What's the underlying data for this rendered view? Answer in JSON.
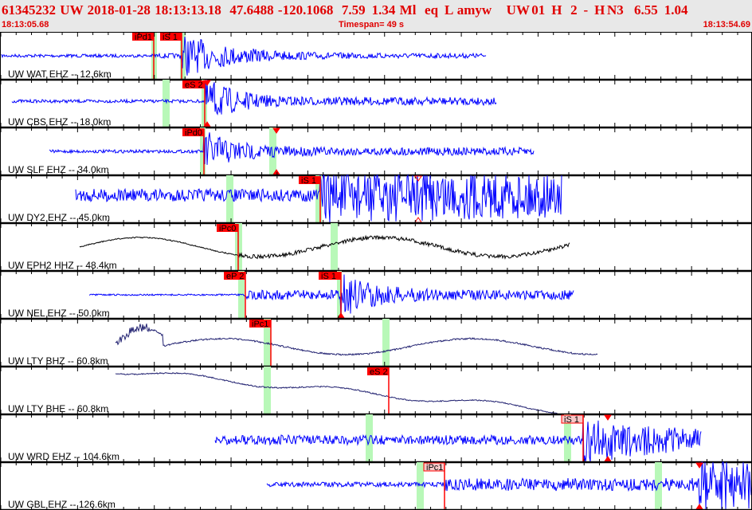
{
  "header": {
    "title": "61345232  UW  2018-01-28  18:13:13.18    47.6488  -120.1068    7.59   1.34  Ml    eq   L  amyw       UW 01   H    2   -   H N3     6.55   1.04",
    "start_time": "18:13:05.68",
    "timespan": "Timespan=  49 s",
    "end_time": "18:13:54.69"
  },
  "colors": {
    "pick": "#ff0000",
    "pick_weak": "#f8c8c8",
    "band": "#b8f8b8",
    "trace_short": "#0000ff",
    "trace_black": "#000000",
    "trace_broadband": "#202070"
  },
  "traces": [
    {
      "label": "UW WAT EHZ -- 12.6km",
      "picks": [
        "iPd1",
        "iS 1"
      ]
    },
    {
      "label": "UW CBS EHZ -- 18.0km",
      "picks": [
        "eS 2"
      ]
    },
    {
      "label": "UW SLF EHZ -- 34.0km",
      "picks": [
        "iPd0"
      ]
    },
    {
      "label": "UW DY2 EHZ -- 45.0km",
      "picks": [
        "iS 1"
      ]
    },
    {
      "label": "UW EPH2 HHZ -- 48.4km",
      "picks": [
        "iPc0"
      ]
    },
    {
      "label": "UW NEL EHZ -- 50.0km",
      "picks": [
        "eP 2",
        "iS 1"
      ]
    },
    {
      "label": "UW LTY BHZ -- 60.8km",
      "picks": [
        "iPc1"
      ]
    },
    {
      "label": "UW LTY BHE -- 60.8km",
      "picks": [
        "eS 2"
      ]
    },
    {
      "label": "UW WRD EHZ -- 104.6km",
      "picks": [
        "iS 1"
      ]
    },
    {
      "label": "UW GBL EHZ -- 126.6km",
      "picks": [
        "iPc1"
      ]
    }
  ]
}
